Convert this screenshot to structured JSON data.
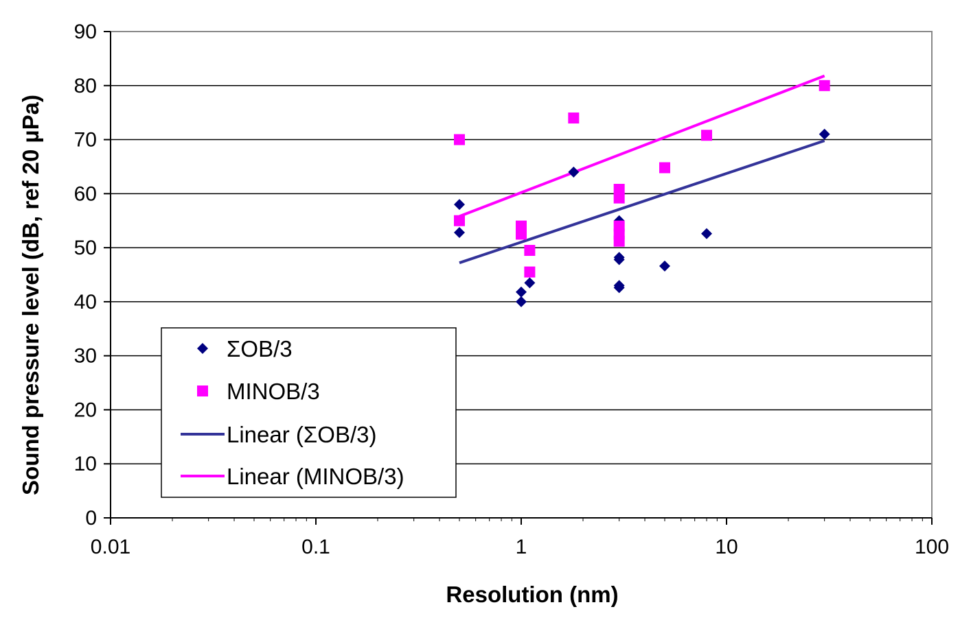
{
  "chart_data": {
    "type": "scatter",
    "xlabel": "Resolution (nm)",
    "ylabel": "Sound pressure level (dB, ref 20 µPa)",
    "x_scale": "log",
    "xlim": [
      0.01,
      100
    ],
    "ylim": [
      0,
      90
    ],
    "x_ticks": [
      0.01,
      0.1,
      1,
      10,
      100
    ],
    "x_tick_labels": [
      "0.01",
      "0.1",
      "1",
      "10",
      "100"
    ],
    "y_ticks": [
      0,
      10,
      20,
      30,
      40,
      50,
      60,
      70,
      80,
      90
    ],
    "y_tick_labels": [
      "0",
      "10",
      "20",
      "30",
      "40",
      "50",
      "60",
      "70",
      "80",
      "90"
    ],
    "grid": "horizontal",
    "legend_position": "lower-left",
    "series": [
      {
        "name": "ΣOB/3",
        "marker": "diamond",
        "color": "#000080",
        "points": [
          [
            0.5,
            58
          ],
          [
            0.5,
            52.8
          ],
          [
            1.0,
            41.8
          ],
          [
            1.0,
            40.0
          ],
          [
            1.1,
            43.5
          ],
          [
            1.8,
            64.0
          ],
          [
            3.0,
            55.0
          ],
          [
            3.0,
            48.2
          ],
          [
            3.0,
            47.8
          ],
          [
            3.0,
            43.0
          ],
          [
            3.0,
            42.6
          ],
          [
            5.0,
            46.6
          ],
          [
            8.0,
            52.6
          ],
          [
            30.0,
            71.0
          ]
        ]
      },
      {
        "name": "MINOB/3",
        "marker": "square",
        "color": "#ff00ff",
        "points": [
          [
            0.5,
            70.0
          ],
          [
            0.5,
            55.0
          ],
          [
            1.0,
            54.0
          ],
          [
            1.0,
            52.5
          ],
          [
            1.1,
            49.5
          ],
          [
            1.1,
            45.5
          ],
          [
            1.8,
            74.0
          ],
          [
            3.0,
            60.8
          ],
          [
            3.0,
            59.2
          ],
          [
            3.0,
            54.0
          ],
          [
            3.0,
            52.5
          ],
          [
            3.0,
            51.2
          ],
          [
            5.0,
            64.8
          ],
          [
            8.0,
            70.8
          ],
          [
            30.0,
            80.0
          ]
        ]
      }
    ],
    "trendlines": [
      {
        "name": "Linear (ΣOB/3)",
        "color": "#333399",
        "points": [
          [
            0.5,
            47.2
          ],
          [
            30.0,
            69.8
          ]
        ]
      },
      {
        "name": "Linear (MINOB/3)",
        "color": "#ff00ff",
        "points": [
          [
            0.5,
            55.8
          ],
          [
            30.0,
            81.8
          ]
        ]
      }
    ]
  }
}
